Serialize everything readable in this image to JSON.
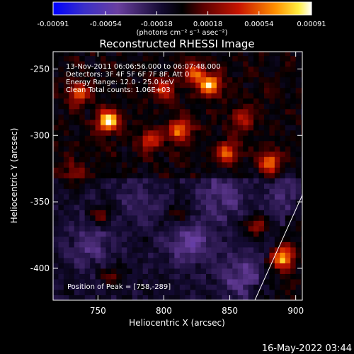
{
  "chart_data": {
    "type": "heatmap",
    "title": "Reconstructed RHESSI Image",
    "xlabel": "Heliocentric X (arcsec)",
    "ylabel": "Heliocentric Y (arcsec)",
    "xlim": [
      716,
      905
    ],
    "ylim": [
      -424,
      -237
    ],
    "x_ticks": [
      "750",
      "800",
      "850",
      "900"
    ],
    "x_tick_values": [
      750,
      800,
      850,
      900
    ],
    "y_ticks": [
      "-250",
      "-300",
      "-350",
      "-400"
    ],
    "y_tick_values": [
      -250,
      -300,
      -350,
      -400
    ],
    "colorbar": {
      "ticks": [
        "-0.00091",
        "-0.00054",
        "-0.00018",
        "0.00018",
        "0.00054",
        "0.00091"
      ],
      "tick_values": [
        -0.00091,
        -0.00054,
        -0.00018,
        0.00018,
        0.00054,
        0.00091
      ],
      "range": [
        -0.00091,
        0.00091
      ],
      "unit_label": "(photons cm⁻² s⁻¹ asec⁻²)"
    },
    "annotations": [
      "13-Nov-2011 06:06:56.000 to 06:07:48.000",
      "Detectors: 3F 4F 5F 6F 7F 8F, Att 0",
      "Energy Range: 12.0 - 25.0 keV",
      "Clean    Total counts: 1.06E+03"
    ],
    "peak_label": "Position of Peak = [758,-289]",
    "peak": [
      758,
      -289
    ],
    "hot_spots": [
      {
        "x": 758,
        "y": -289,
        "value": 0.00091
      },
      {
        "x": 835,
        "y": -262,
        "value": 0.0008
      },
      {
        "x": 812,
        "y": -296,
        "value": 0.00064
      },
      {
        "x": 880,
        "y": -320,
        "value": 0.00062
      },
      {
        "x": 790,
        "y": -303,
        "value": 0.0005
      },
      {
        "x": 848,
        "y": -313,
        "value": 0.00058
      },
      {
        "x": 735,
        "y": -268,
        "value": 0.00052
      },
      {
        "x": 823,
        "y": -252,
        "value": 0.00055
      },
      {
        "x": 890,
        "y": -392,
        "value": 0.00078
      },
      {
        "x": 870,
        "y": -367,
        "value": 0.0004
      },
      {
        "x": 752,
        "y": -360,
        "value": 0.00036
      },
      {
        "x": 760,
        "y": -405,
        "value": 0.0003
      },
      {
        "x": 812,
        "y": -360,
        "value": 0.00028
      },
      {
        "x": 800,
        "y": -265,
        "value": 0.00045
      },
      {
        "x": 732,
        "y": -330,
        "value": 0.00032
      },
      {
        "x": 860,
        "y": -287,
        "value": 0.00035
      }
    ],
    "cool_regions": [
      {
        "x": 820,
        "y": -380,
        "value": -0.0003
      },
      {
        "x": 860,
        "y": -405,
        "value": -0.00026
      },
      {
        "x": 745,
        "y": -382,
        "value": -0.00022
      },
      {
        "x": 845,
        "y": -345,
        "value": -0.00024
      },
      {
        "x": 895,
        "y": -345,
        "value": -0.00018
      },
      {
        "x": 780,
        "y": -345,
        "value": -0.00014
      }
    ],
    "limb_line": [
      [
        869,
        -424
      ],
      [
        905,
        -345
      ]
    ]
  },
  "timestamp": "16-May-2022 03:44"
}
